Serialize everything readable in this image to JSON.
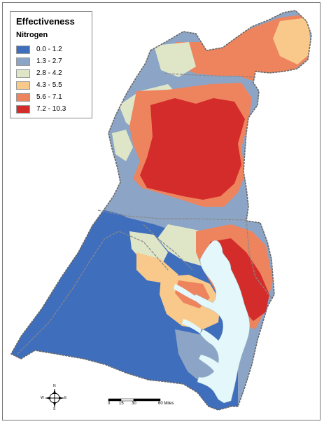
{
  "legend": {
    "title": "Effectiveness",
    "subtitle": "Nitrogen",
    "items": [
      {
        "label": "0.0 - 1.2",
        "color": "#3f6ebd"
      },
      {
        "label": "1.3 - 2.7",
        "color": "#8ca5c6"
      },
      {
        "label": "2.8 - 4.2",
        "color": "#dfe6c8"
      },
      {
        "label": "4.3 - 5.5",
        "color": "#f8c98a"
      },
      {
        "label": "5.6 - 7.1",
        "color": "#ed845e"
      },
      {
        "label": "7.2 - 10.3",
        "color": "#d42c2a"
      }
    ]
  },
  "scale": {
    "ticks": [
      "0",
      "15",
      "30",
      "60 Miles"
    ]
  },
  "compass": {
    "n": "N",
    "s": "S",
    "e": "E",
    "w": "W"
  },
  "colors": {
    "water": "#e4f8fb",
    "outline": "#666666",
    "state_border": "#888888"
  }
}
